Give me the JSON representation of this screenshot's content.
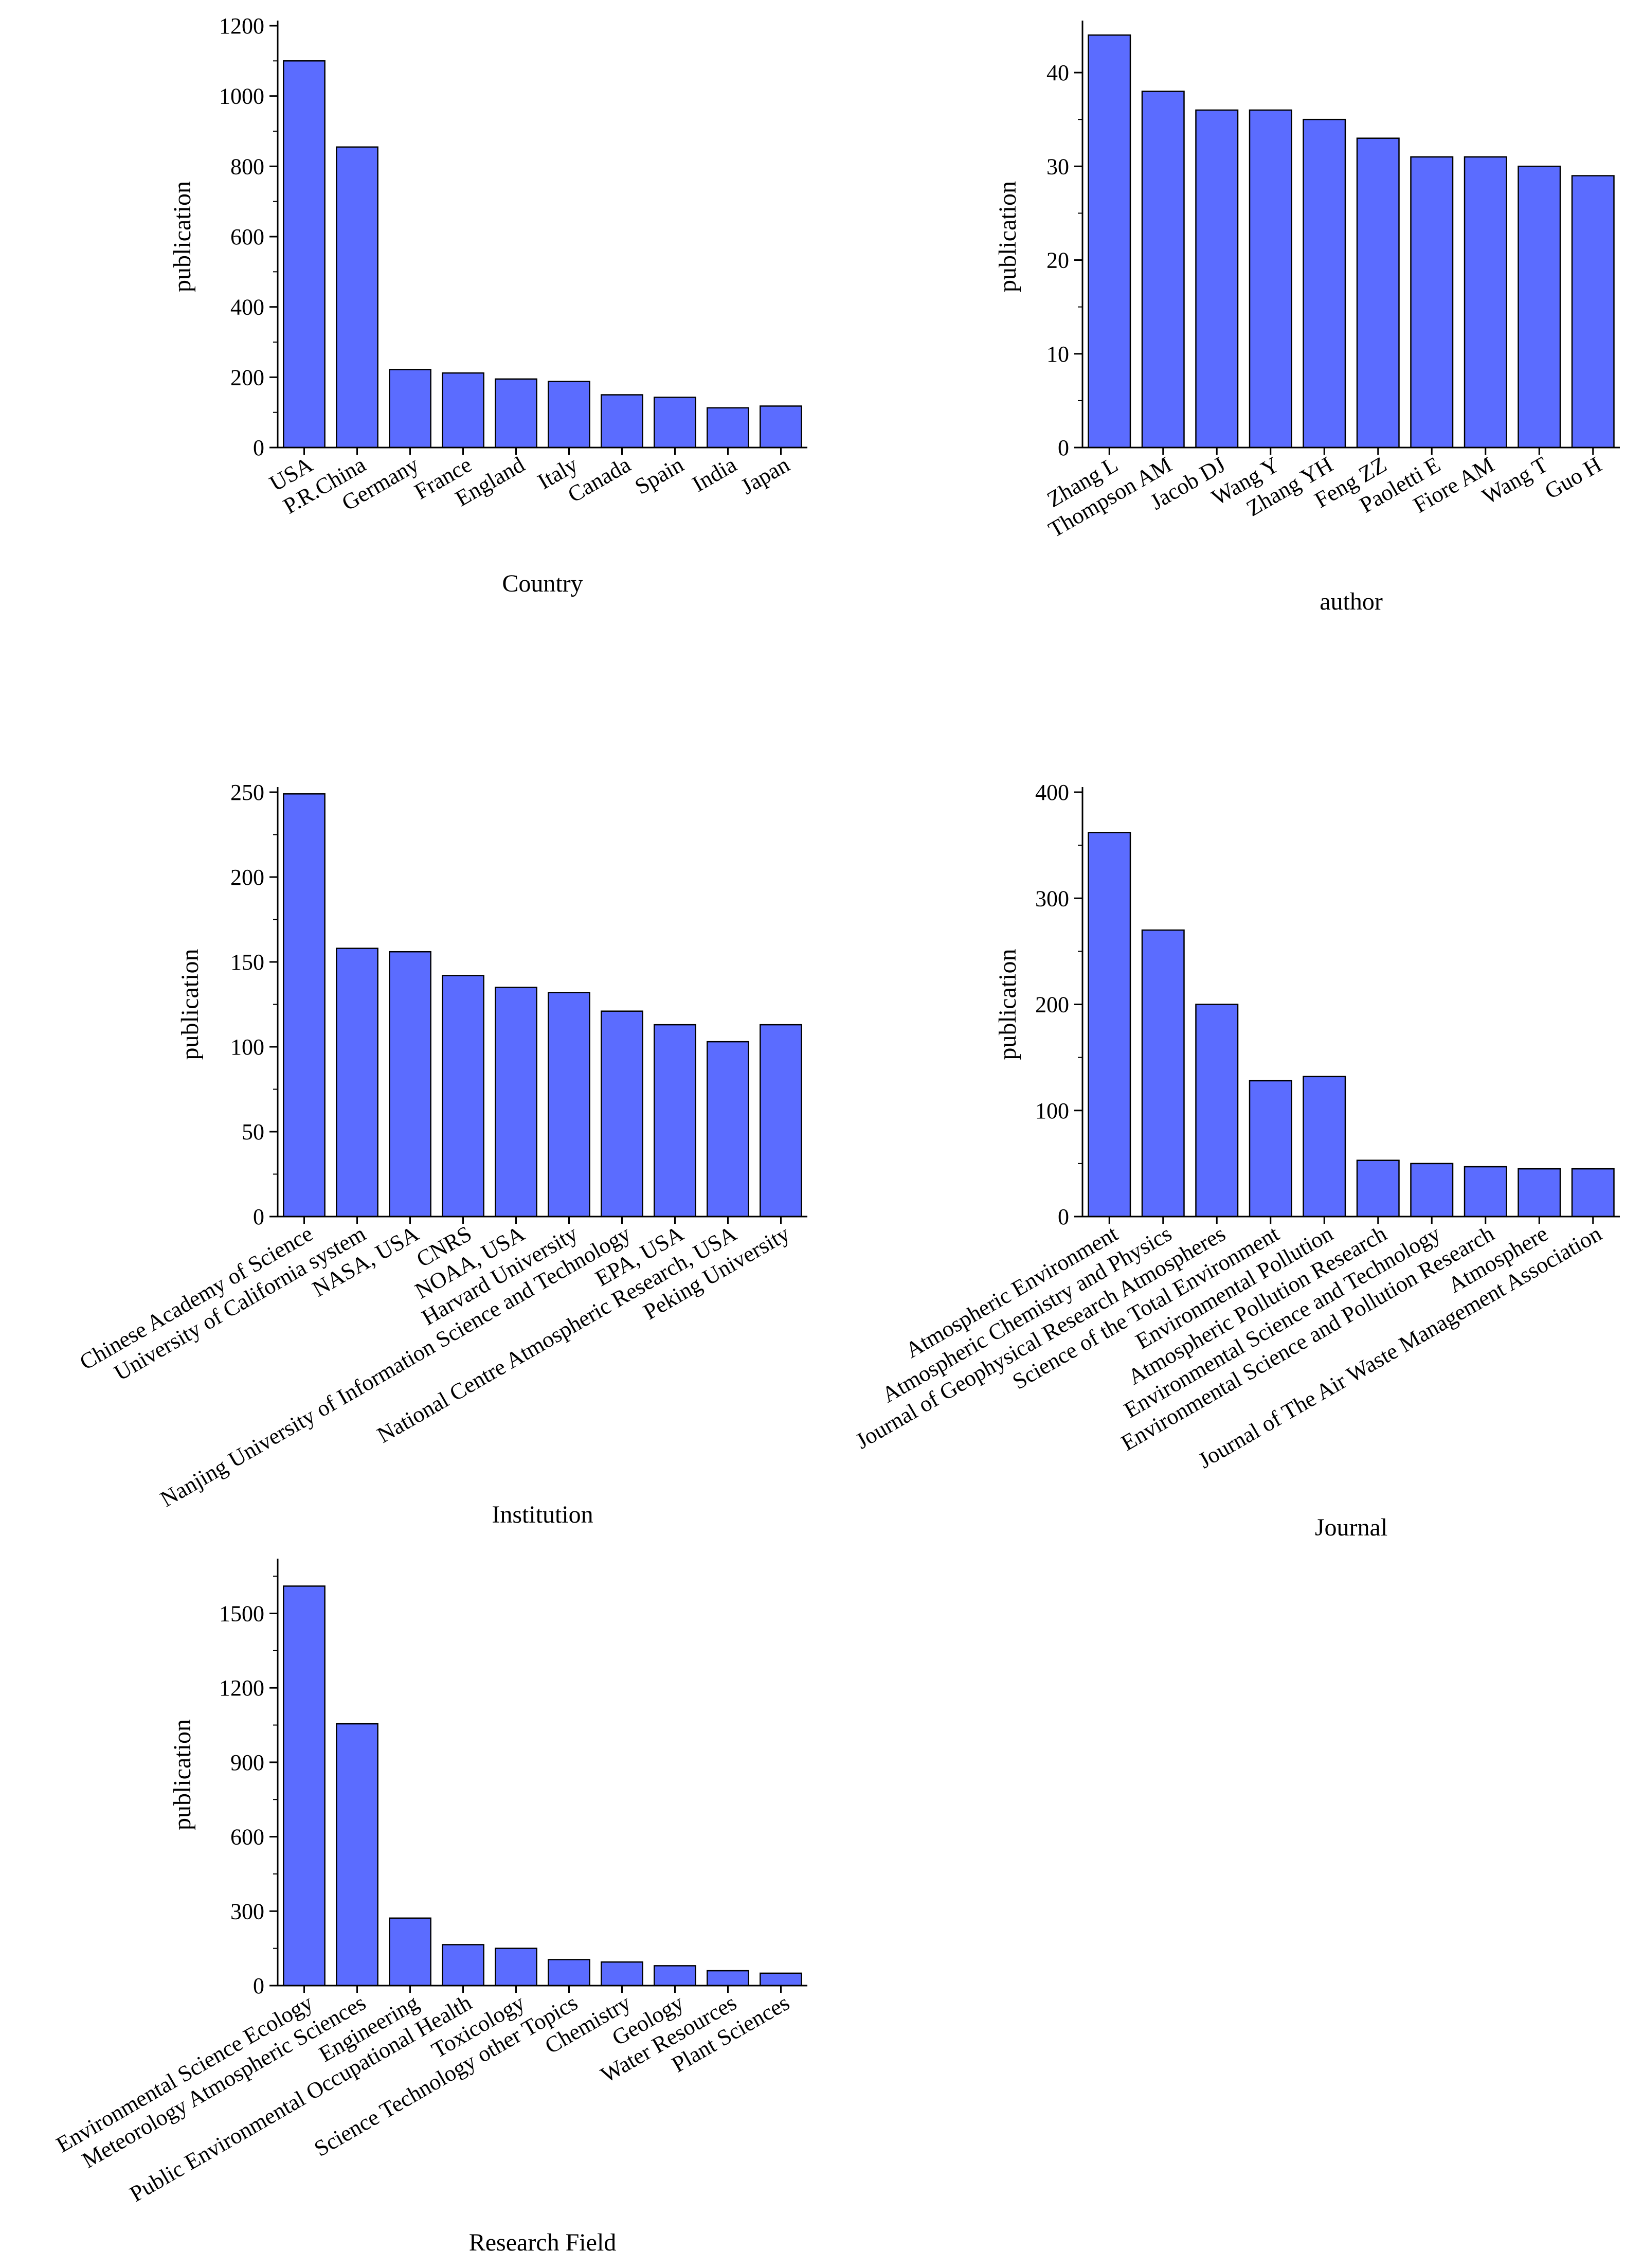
{
  "colors": {
    "bar_fill": "#5b6cff",
    "bar_stroke": "#000000"
  },
  "chart_data": [
    {
      "type": "bar",
      "title": "",
      "xlabel": "Country",
      "ylabel": "publication",
      "categories": [
        "USA",
        "P.R.China",
        "Germany",
        "France",
        "England",
        "Italy",
        "Canada",
        "Spain",
        "India",
        "Japan"
      ],
      "values": [
        1100,
        855,
        222,
        212,
        195,
        188,
        150,
        143,
        113,
        118
      ],
      "ylim": [
        0,
        1200
      ],
      "yticks": [
        0,
        200,
        400,
        600,
        800,
        1000,
        1200
      ],
      "grid": false
    },
    {
      "type": "bar",
      "title": "",
      "xlabel": "author",
      "ylabel": "publication",
      "categories": [
        "Zhang L",
        "Thompson AM",
        "Jacob DJ",
        "Wang Y",
        "Zhang YH",
        "Feng ZZ",
        "Paoletti E",
        "Fiore AM",
        "Wang T",
        "Guo H"
      ],
      "values": [
        44,
        38,
        36,
        36,
        35,
        33,
        31,
        31,
        30,
        29
      ],
      "ylim": [
        0,
        45
      ],
      "yticks": [
        0,
        10,
        20,
        30,
        40
      ],
      "grid": false
    },
    {
      "type": "bar",
      "title": "",
      "xlabel": "Institution",
      "ylabel": "publication",
      "categories": [
        "Chinese Academy of Science",
        "University of California system",
        "NASA, USA",
        "CNRS",
        "NOAA, USA",
        "Harvard University",
        "Nanjing University of Information Science and Technology",
        "EPA, USA",
        "National Centre Atmospheric Research, USA",
        "Peking University"
      ],
      "values": [
        249,
        158,
        156,
        142,
        135,
        132,
        121,
        113,
        103,
        113
      ],
      "ylim": [
        0,
        250
      ],
      "yticks": [
        0,
        50,
        100,
        150,
        200,
        250
      ],
      "grid": false
    },
    {
      "type": "bar",
      "title": "",
      "xlabel": "Journal",
      "ylabel": "publication",
      "categories": [
        "Atmospheric Environment",
        "Atmospheric Chemistry and Physics",
        "Journal of Geophysical Research Atmospheres",
        "Science of the Total Environment",
        "Environmental Pollution",
        "Atmospheric Pollution Research",
        "Environmental Science and Technology",
        "Environmental Science and Pollution Research",
        "Atmosphere",
        "Journal of The Air Waste Management Association"
      ],
      "values": [
        362,
        270,
        200,
        128,
        132,
        53,
        50,
        47,
        45,
        45
      ],
      "ylim": [
        0,
        400
      ],
      "yticks": [
        0,
        100,
        200,
        300,
        400
      ],
      "grid": false
    },
    {
      "type": "bar",
      "title": "",
      "xlabel": "Research Field",
      "ylabel": "publication",
      "categories": [
        "Environmental Science Ecology",
        "Meteorology Atmospheric Sciences",
        "Engineering",
        "Public Environmental Occupational Health",
        "Toxicology",
        "Science Technology other Topics",
        "Chemistry",
        "Geology",
        "Water Resources",
        "Plant Sciences"
      ],
      "values": [
        1610,
        1055,
        272,
        165,
        150,
        105,
        95,
        80,
        60,
        50
      ],
      "ylim": [
        0,
        1700
      ],
      "yticks": [
        0,
        300,
        600,
        900,
        1200,
        1500
      ],
      "grid": false
    }
  ]
}
